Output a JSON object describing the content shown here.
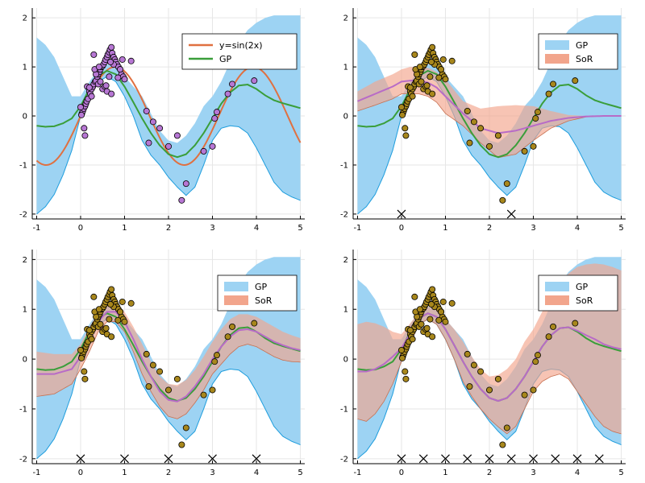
{
  "colors": {
    "gp_band": "#9dd3f3",
    "gp_band_edge": "#1e9ddd",
    "gp_line": "#3a9e3a",
    "sin_line": "#e07040",
    "sor_band": "#f2a58c",
    "sor_line": "#b86bc7",
    "pts_purple": "#b777d4",
    "pts_gold": "#a8871c",
    "grid": "#e6e6e6"
  },
  "chart_data": [
    {
      "type": "line",
      "panel": "top-left",
      "xlim": [
        -1.1,
        5.1
      ],
      "ylim": [
        -2.1,
        2.2
      ],
      "xticks": [
        "-1",
        "0",
        "1",
        "2",
        "3",
        "4",
        "5"
      ],
      "yticks": [
        "-2",
        "-1",
        "0",
        "1",
        "2"
      ],
      "grid": true,
      "legend": {
        "placement": "top-right",
        "entries": [
          "y=sin(2x)",
          "GP"
        ]
      },
      "point_color": "purple",
      "series": [
        {
          "name": "y=sin(2x)",
          "kind": "line",
          "fn": "sin2x"
        },
        {
          "name": "GP",
          "kind": "line+band"
        }
      ],
      "inducing": []
    },
    {
      "type": "line",
      "panel": "top-right",
      "xlim": [
        -1.1,
        5.1
      ],
      "ylim": [
        -2.1,
        2.2
      ],
      "xticks": [
        "-1",
        "0",
        "1",
        "2",
        "3",
        "4",
        "5"
      ],
      "yticks": [
        "-2",
        "-1",
        "0",
        "1",
        "2"
      ],
      "grid": true,
      "legend": {
        "placement": "top-right",
        "entries": [
          "GP",
          "SoR"
        ]
      },
      "point_color": "gold",
      "series": [
        {
          "name": "GP",
          "kind": "band"
        },
        {
          "name": "SoR",
          "kind": "band"
        }
      ],
      "inducing": [
        0,
        2.5
      ]
    },
    {
      "type": "line",
      "panel": "bottom-left",
      "xlim": [
        -1.1,
        5.1
      ],
      "ylim": [
        -2.1,
        2.2
      ],
      "xticks": [
        "-1",
        "0",
        "1",
        "2",
        "3",
        "4",
        "5"
      ],
      "yticks": [
        "-2",
        "-1",
        "0",
        "1",
        "2"
      ],
      "grid": true,
      "legend": {
        "placement": "top-right",
        "entries": [
          "GP",
          "SoR"
        ]
      },
      "point_color": "gold",
      "series": [
        {
          "name": "GP",
          "kind": "band"
        },
        {
          "name": "SoR",
          "kind": "band"
        }
      ],
      "inducing": [
        0,
        1,
        2,
        3,
        4
      ]
    },
    {
      "type": "line",
      "panel": "bottom-right",
      "xlim": [
        -1.1,
        5.1
      ],
      "ylim": [
        -2.1,
        2.2
      ],
      "xticks": [
        "-1",
        "0",
        "1",
        "2",
        "3",
        "4",
        "5"
      ],
      "yticks": [
        "-2",
        "-1",
        "0",
        "1",
        "2"
      ],
      "grid": true,
      "legend": {
        "placement": "top-right",
        "entries": [
          "GP",
          "SoR"
        ]
      },
      "point_color": "gold",
      "series": [
        {
          "name": "GP",
          "kind": "band"
        },
        {
          "name": "SoR",
          "kind": "band"
        }
      ],
      "inducing": [
        0,
        0.5,
        1,
        1.5,
        2,
        2.5,
        3,
        3.5,
        4,
        4.5
      ]
    }
  ],
  "gp_curve": {
    "x": [
      -1.0,
      -0.8,
      -0.6,
      -0.4,
      -0.2,
      0.0,
      0.2,
      0.4,
      0.6,
      0.8,
      1.0,
      1.2,
      1.4,
      1.6,
      1.8,
      2.0,
      2.2,
      2.4,
      2.6,
      2.8,
      3.0,
      3.2,
      3.4,
      3.6,
      3.8,
      4.0,
      4.2,
      4.4,
      4.6,
      4.8,
      5.0
    ],
    "mean": [
      -0.2,
      -0.22,
      -0.21,
      -0.15,
      -0.05,
      0.2,
      0.55,
      0.82,
      0.92,
      0.85,
      0.6,
      0.28,
      -0.05,
      -0.35,
      -0.6,
      -0.78,
      -0.84,
      -0.78,
      -0.6,
      -0.35,
      -0.05,
      0.25,
      0.48,
      0.62,
      0.64,
      0.55,
      0.42,
      0.32,
      0.26,
      0.21,
      0.16
    ],
    "upper": [
      1.6,
      1.45,
      1.2,
      0.8,
      0.4,
      0.4,
      0.7,
      0.95,
      1.05,
      1.0,
      0.8,
      0.6,
      0.4,
      0.05,
      -0.3,
      -0.5,
      -0.55,
      -0.4,
      -0.15,
      0.2,
      0.4,
      0.7,
      1.1,
      1.5,
      1.75,
      1.9,
      2.0,
      2.05,
      2.05,
      2.05,
      2.05
    ],
    "lower": [
      -2.0,
      -1.85,
      -1.6,
      -1.2,
      -0.7,
      0.0,
      0.4,
      0.7,
      0.8,
      0.7,
      0.4,
      0.0,
      -0.5,
      -0.8,
      -1.0,
      -1.25,
      -1.45,
      -1.62,
      -1.45,
      -1.0,
      -0.5,
      -0.25,
      -0.2,
      -0.22,
      -0.35,
      -0.65,
      -1.0,
      -1.35,
      -1.55,
      -1.65,
      -1.72
    ]
  },
  "sor_bands": [
    {
      "x": [
        -1.0,
        -0.6,
        -0.2,
        0.0,
        0.2,
        0.4,
        0.6,
        0.8,
        1.0,
        1.4,
        1.8,
        2.2,
        2.6,
        3.0,
        3.4,
        3.8,
        4.2,
        4.6,
        5.0
      ],
      "mean": [
        0.3,
        0.45,
        0.6,
        0.7,
        0.72,
        0.72,
        0.68,
        0.58,
        0.4,
        0.05,
        -0.25,
        -0.35,
        -0.3,
        -0.2,
        -0.1,
        -0.04,
        -0.01,
        0.0,
        0.0
      ],
      "upper": [
        0.5,
        0.7,
        0.85,
        0.95,
        1.0,
        1.0,
        0.98,
        0.9,
        0.75,
        0.3,
        0.15,
        0.2,
        0.22,
        0.2,
        0.1,
        0.02,
        0.0,
        0.0,
        0.0
      ],
      "lower": [
        0.1,
        0.22,
        0.35,
        0.45,
        0.45,
        0.45,
        0.4,
        0.28,
        0.05,
        -0.2,
        -0.55,
        -0.85,
        -0.78,
        -0.5,
        -0.25,
        -0.1,
        -0.02,
        0.0,
        0.0
      ]
    },
    {
      "x": [
        -1.0,
        -0.6,
        -0.2,
        0.0,
        0.2,
        0.4,
        0.6,
        0.8,
        1.0,
        1.2,
        1.4,
        1.6,
        1.8,
        2.0,
        2.2,
        2.4,
        2.6,
        2.8,
        3.0,
        3.2,
        3.4,
        3.6,
        3.8,
        4.0,
        4.2,
        4.4,
        4.6,
        4.8,
        5.0
      ],
      "mean": [
        -0.3,
        -0.3,
        -0.2,
        0.05,
        0.4,
        0.75,
        0.95,
        0.95,
        0.75,
        0.4,
        0.0,
        -0.35,
        -0.65,
        -0.82,
        -0.85,
        -0.75,
        -0.55,
        -0.3,
        0.0,
        0.25,
        0.45,
        0.58,
        0.6,
        0.55,
        0.45,
        0.35,
        0.28,
        0.22,
        0.18
      ],
      "upper": [
        0.15,
        0.1,
        0.1,
        0.3,
        0.65,
        0.95,
        1.15,
        1.15,
        0.95,
        0.65,
        0.3,
        -0.05,
        -0.35,
        -0.5,
        -0.52,
        -0.42,
        -0.22,
        0.05,
        0.35,
        0.6,
        0.8,
        0.9,
        0.9,
        0.85,
        0.75,
        0.65,
        0.55,
        0.48,
        0.42
      ],
      "lower": [
        -0.75,
        -0.7,
        -0.5,
        -0.2,
        0.15,
        0.55,
        0.75,
        0.75,
        0.55,
        0.15,
        -0.3,
        -0.65,
        -0.95,
        -1.15,
        -1.2,
        -1.1,
        -0.88,
        -0.62,
        -0.3,
        -0.1,
        0.1,
        0.25,
        0.3,
        0.25,
        0.15,
        0.05,
        -0.02,
        -0.05,
        -0.06
      ]
    },
    {
      "x": [
        -1.0,
        -0.8,
        -0.6,
        -0.4,
        -0.2,
        0.0,
        0.2,
        0.4,
        0.6,
        0.8,
        1.0,
        1.2,
        1.4,
        1.6,
        1.8,
        2.0,
        2.2,
        2.4,
        2.6,
        2.8,
        3.0,
        3.2,
        3.4,
        3.6,
        3.8,
        4.0,
        4.2,
        4.4,
        4.6,
        4.8,
        5.0
      ],
      "mean": [
        -0.25,
        -0.25,
        -0.2,
        -0.1,
        0.05,
        0.22,
        0.52,
        0.82,
        0.92,
        0.85,
        0.6,
        0.28,
        -0.05,
        -0.35,
        -0.6,
        -0.78,
        -0.84,
        -0.78,
        -0.6,
        -0.35,
        -0.05,
        0.25,
        0.48,
        0.62,
        0.64,
        0.57,
        0.48,
        0.4,
        0.3,
        0.24,
        0.2
      ],
      "upper": [
        0.7,
        0.75,
        0.72,
        0.65,
        0.55,
        0.5,
        0.72,
        0.95,
        1.05,
        1.0,
        0.8,
        0.6,
        0.35,
        0.05,
        -0.2,
        -0.35,
        -0.32,
        -0.2,
        0.0,
        0.35,
        0.6,
        0.95,
        1.3,
        1.55,
        1.72,
        1.85,
        1.9,
        1.92,
        1.9,
        1.85,
        1.78
      ],
      "lower": [
        -1.2,
        -1.25,
        -1.1,
        -0.85,
        -0.5,
        -0.05,
        0.32,
        0.7,
        0.8,
        0.7,
        0.4,
        0.0,
        -0.45,
        -0.75,
        -1.0,
        -1.2,
        -1.36,
        -1.5,
        -1.35,
        -1.0,
        -0.65,
        -0.45,
        -0.35,
        -0.3,
        -0.4,
        -0.65,
        -0.9,
        -1.15,
        -1.35,
        -1.45,
        -1.5
      ]
    }
  ],
  "points": {
    "x": [
      0.03,
      0.05,
      0.07,
      0.1,
      0.0,
      0.02,
      0.12,
      0.14,
      0.17,
      0.2,
      0.22,
      0.25,
      0.28,
      0.3,
      0.33,
      0.35,
      0.38,
      0.4,
      0.43,
      0.45,
      0.47,
      0.5,
      0.52,
      0.55,
      0.57,
      0.6,
      0.62,
      0.65,
      0.67,
      0.7,
      0.72,
      0.75,
      0.78,
      0.8,
      0.83,
      0.86,
      0.9,
      0.93,
      0.97,
      1.0,
      0.3,
      0.4,
      0.5,
      0.55,
      0.6,
      0.7,
      0.75,
      0.35,
      0.45,
      0.65,
      0.25,
      0.15,
      0.08,
      0.9,
      1.15,
      1.5,
      1.55,
      1.65,
      1.8,
      2.0,
      2.2,
      2.3,
      2.4,
      2.8,
      3.0,
      3.05,
      3.1,
      3.35,
      3.45,
      3.95,
      0.1,
      0.2,
      0.32,
      0.42,
      0.58,
      0.68,
      0.85,
      0.95
    ],
    "y": [
      0.05,
      0.1,
      0.15,
      0.2,
      0.18,
      0.02,
      0.25,
      0.3,
      0.35,
      0.5,
      0.45,
      0.55,
      0.6,
      0.65,
      0.7,
      0.72,
      0.8,
      0.85,
      0.9,
      0.95,
      1.0,
      1.02,
      1.05,
      1.1,
      1.15,
      1.2,
      1.25,
      1.3,
      1.35,
      1.4,
      1.28,
      1.2,
      1.15,
      1.1,
      1.05,
      1.0,
      0.95,
      0.85,
      0.8,
      0.75,
      1.25,
      0.65,
      0.55,
      0.6,
      0.5,
      0.45,
      1.05,
      0.85,
      0.7,
      0.8,
      0.4,
      0.6,
      -0.25,
      0.95,
      1.12,
      0.1,
      -0.55,
      -0.12,
      -0.25,
      -0.62,
      -0.4,
      -1.72,
      -1.38,
      -0.72,
      -0.62,
      -0.05,
      0.08,
      0.45,
      0.65,
      0.72,
      -0.4,
      0.58,
      0.95,
      1.0,
      0.62,
      1.1,
      0.78,
      1.15
    ]
  }
}
